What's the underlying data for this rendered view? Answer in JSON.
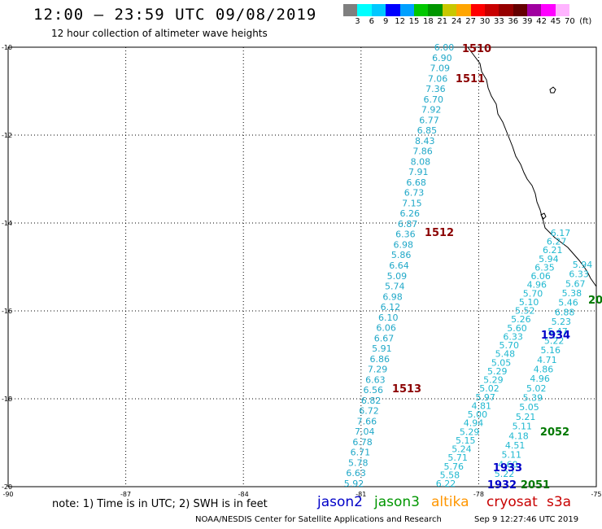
{
  "header": {
    "title": "12:00 – 23:59 UTC 09/08/2019",
    "subtitle": "12 hour collection of altimeter wave heights"
  },
  "colorbar": {
    "colors": [
      "#7f7f7f",
      "#00ffff",
      "#00c8ff",
      "#0000ff",
      "#00a0ff",
      "#00c800",
      "#009600",
      "#c8c800",
      "#ffa500",
      "#ff0000",
      "#c80000",
      "#960000",
      "#640000",
      "#a000a0",
      "#ff00ff",
      "#ffb4ff"
    ],
    "labels": [
      "3",
      "6",
      "9",
      "12",
      "15",
      "18",
      "21",
      "24",
      "27",
      "30",
      "33",
      "36",
      "39",
      "42",
      "45",
      "70",
      "(ft)"
    ]
  },
  "map": {
    "lon_range": [
      -90,
      -75
    ],
    "lat_range": [
      -20,
      -10
    ],
    "lon_ticks": [
      "-90",
      "-87",
      "-84",
      "-81",
      "-78",
      "-75"
    ],
    "lat_ticks": [
      "-10",
      "-12",
      "-14",
      "-16",
      "-18",
      "-20"
    ]
  },
  "passes": [
    {
      "id": "1510",
      "satellite": "cryosat",
      "color": "#8b0000"
    },
    {
      "id": "1511",
      "satellite": "cryosat",
      "color": "#8b0000"
    },
    {
      "id": "1512",
      "satellite": "cryosat",
      "color": "#8b0000"
    },
    {
      "id": "1513",
      "satellite": "cryosat",
      "color": "#8b0000"
    },
    {
      "id": "1932",
      "satellite": "jason2",
      "color": "#0000c8"
    },
    {
      "id": "1933",
      "satellite": "jason2",
      "color": "#0000c8"
    },
    {
      "id": "1934",
      "satellite": "jason2",
      "color": "#0000c8"
    },
    {
      "id": "2051",
      "satellite": "jason3",
      "color": "#007800"
    },
    {
      "id": "2052",
      "satellite": "jason3",
      "color": "#007800"
    },
    {
      "id": "20",
      "satellite": "jason3",
      "color": "#007800"
    }
  ],
  "tracks": {
    "track_a_values": [
      "6.00",
      "6.90",
      "7.09",
      "7.06",
      "7.36",
      "6.70",
      "7.92",
      "6.77",
      "6.85",
      "8.43",
      "7.86",
      "8.08",
      "7.91",
      "6.68",
      "6.73",
      "7.15",
      "6.26",
      "6.87",
      "6.36",
      "6.98",
      "5.86",
      "6.64",
      "5.09",
      "5.74",
      "6.98",
      "6.12",
      "6.10",
      "6.06",
      "6.67",
      "5.91",
      "6.86",
      "7.29",
      "6.63",
      "6.56",
      "6.82",
      "6.72",
      "7.66",
      "7.04",
      "6.78",
      "6.71",
      "5.78",
      "6.63",
      "5.92"
    ],
    "track_b_values": [
      "6.17",
      "6.27",
      "6.21",
      "5.94",
      "6.35",
      "6.06",
      "4.96",
      "5.70",
      "5.10",
      "5.52",
      "5.26",
      "5.60",
      "6.33",
      "5.70",
      "5.48",
      "5.05",
      "5.29",
      "5.29",
      "5.02",
      "5.97",
      "4.81",
      "5.00",
      "4.94",
      "5.29",
      "5.15",
      "5.24",
      "5.71",
      "5.76",
      "5.58",
      "6.22"
    ],
    "track_c_values": [
      "5.94",
      "6.33",
      "5.67",
      "5.38",
      "5.46",
      "6.88",
      "5.23",
      "5.47",
      "5.22",
      "5.16",
      "4.71",
      "4.86",
      "4.96",
      "5.02",
      "5.39",
      "5.05",
      "5.21",
      "5.11",
      "4.18",
      "4.51",
      "5.11",
      "4.60",
      "5.22"
    ]
  },
  "legend": {
    "note": "note: 1) Time is in UTC; 2) SWH is in feet",
    "satellites": [
      {
        "name": "jason2",
        "color": "#0000c8"
      },
      {
        "name": "jason3",
        "color": "#009600"
      },
      {
        "name": "altika",
        "color": "#ff9600"
      },
      {
        "name": "cryosat",
        "color": "#c80000"
      },
      {
        "name": "s3a",
        "color": "#c80000"
      }
    ]
  },
  "footer": {
    "credit": "NOAA/NESDIS Center for Satellite Applications and Research",
    "timestamp": "Sep  9 12:27:46 UTC 2019"
  }
}
